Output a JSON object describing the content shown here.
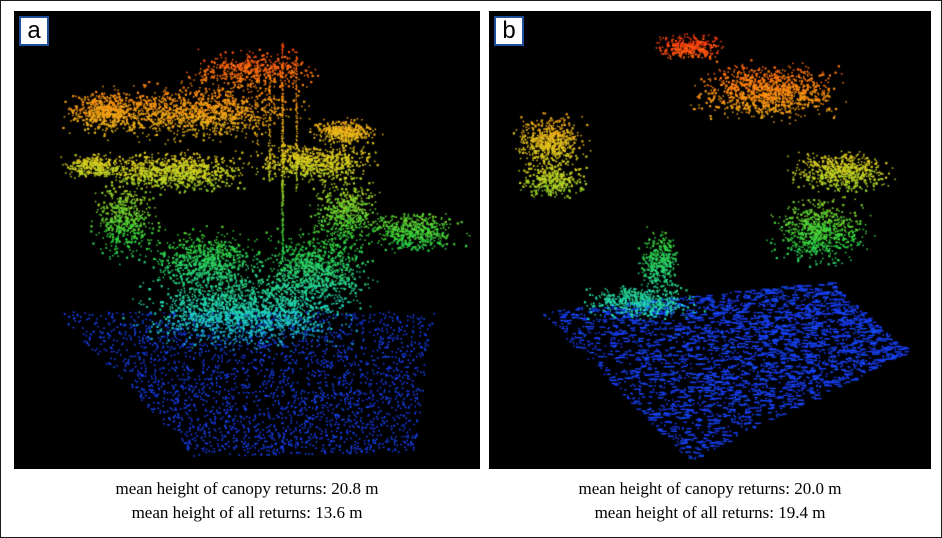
{
  "panels": [
    {
      "label": "a",
      "caption_line1": "mean height of canopy returns: 20.8 m",
      "caption_line2": "mean height of all returns: 13.6 m"
    },
    {
      "label": "b",
      "caption_line1": "mean height of canopy returns: 20.0 m",
      "caption_line2": "mean height of all returns: 19.4 m"
    }
  ],
  "colors": {
    "panel_background": "#000000",
    "label_border": "#1f4e9a",
    "height_gradient": [
      "#1a22d8",
      "#1550ff",
      "#1fd4c4",
      "#2fd23a",
      "#d8d020",
      "#ff8a10",
      "#ff1a10"
    ]
  }
}
